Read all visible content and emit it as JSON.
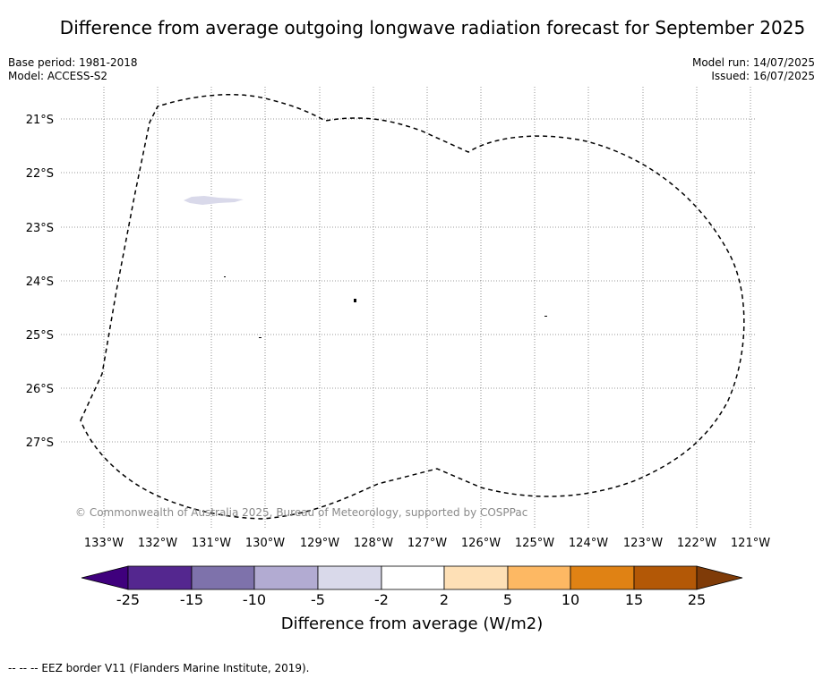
{
  "title": "Difference from average outgoing longwave radiation forecast for September 2025",
  "base_period": "Base period: 1981-2018",
  "model": "Model: ACCESS-S2",
  "model_run": "Model run: 14/07/2025",
  "issued": "Issued: 16/07/2025",
  "copyright": "© Commonwealth of Australia 2025, Bureau of Meteorology, supported by COSPPac",
  "footer_note": "-- -- -- EEZ border V11 (Flanders Marine Institute, 2019).",
  "map": {
    "lon_labels": [
      "133°W",
      "132°W",
      "131°W",
      "130°W",
      "129°W",
      "128°W",
      "127°W",
      "126°W",
      "125°W",
      "124°W",
      "123°W",
      "122°W",
      "121°W"
    ],
    "lat_labels": [
      "21°S",
      "22°S",
      "23°S",
      "24°S",
      "25°S",
      "26°S",
      "27°S"
    ],
    "anomaly_patch": {
      "lon": -131.6,
      "lat": -22.5,
      "category": "-5 to -2",
      "color": "#d9d9ea"
    },
    "border_style": "dashed"
  },
  "colorbar": {
    "label": "Difference from average (W/m2)",
    "ticks": [
      "-25",
      "-15",
      "-10",
      "-5",
      "-2",
      "2",
      "5",
      "10",
      "15",
      "25"
    ],
    "colors": [
      "#3f007d",
      "#54278f",
      "#7e72ab",
      "#b2abd2",
      "#d9d9ea",
      "#ffffff",
      "#fee0b6",
      "#fdb863",
      "#e08214",
      "#b35806",
      "#7f3b08"
    ]
  }
}
